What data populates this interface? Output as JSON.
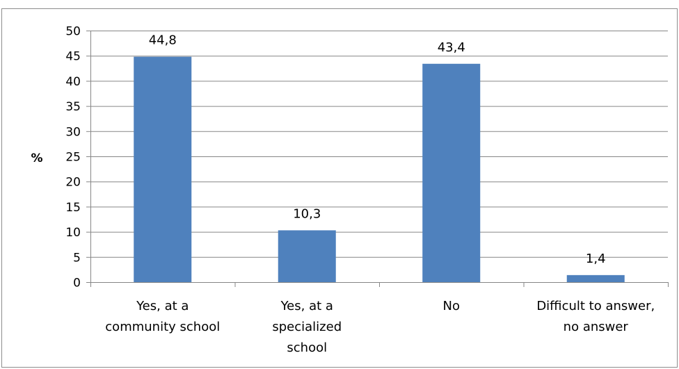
{
  "chart_data": {
    "type": "bar",
    "categories": [
      [
        "Yes, at a",
        "community school"
      ],
      [
        "Yes, at a",
        "specialized",
        "school"
      ],
      [
        "No"
      ],
      [
        "Difficult to answer,",
        "no answer"
      ]
    ],
    "values": [
      44.8,
      10.3,
      43.4,
      1.4
    ],
    "data_labels": [
      "44,8",
      "10,3",
      "43,4",
      "1,4"
    ],
    "ylabel": "%",
    "ylim": [
      0,
      50
    ],
    "yticks": [
      0,
      5,
      10,
      15,
      20,
      25,
      30,
      35,
      40,
      45,
      50
    ],
    "grid": true,
    "legend": "none",
    "bar_color": "#4f81bd",
    "grid_color": "#868686"
  }
}
